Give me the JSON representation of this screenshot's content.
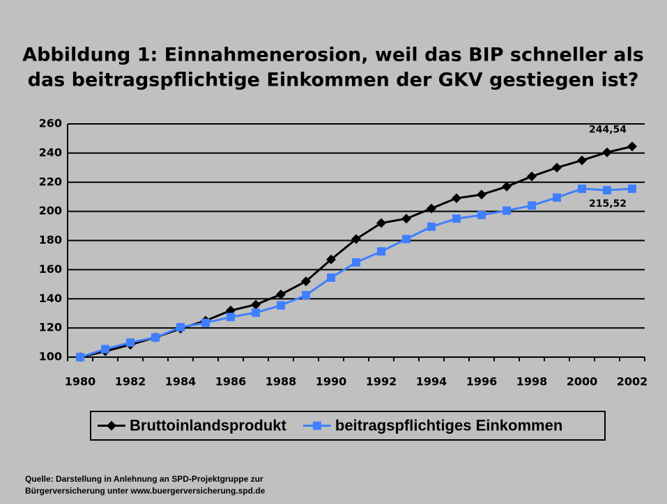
{
  "chart_data": {
    "type": "line",
    "title": [
      "Abbildung 1: Einnahmenerosion, weil das BIP schneller als",
      "das beitragspflichtige Einkommen der GKV gestiegen ist?"
    ],
    "categories": [
      "1980",
      null,
      "1982",
      null,
      "1984",
      null,
      "1986",
      null,
      "1988",
      null,
      "1990",
      null,
      "1992",
      null,
      "1994",
      null,
      "1996",
      null,
      "1998",
      null,
      "2000",
      null,
      "2002"
    ],
    "series": [
      {
        "name": "Bruttoinlandsprodukt",
        "color": "#000000",
        "marker": "diamond",
        "values": [
          100,
          104,
          108.5,
          113.5,
          119.5,
          125,
          132,
          136,
          143,
          152,
          167,
          181,
          192,
          195,
          202,
          209,
          211.5,
          217,
          224,
          230,
          235,
          240.5,
          244.54
        ],
        "value_labels": [
          null,
          null,
          null,
          null,
          null,
          null,
          null,
          null,
          null,
          null,
          null,
          null,
          null,
          null,
          null,
          null,
          null,
          null,
          null,
          null,
          null,
          null,
          "244,54"
        ]
      },
      {
        "name": "beitragspflichtiges Einkommen",
        "color": "#3f7fff",
        "marker": "square",
        "values": [
          100,
          105.5,
          110,
          113.5,
          120.5,
          123.5,
          127.5,
          130.5,
          135.5,
          142.5,
          154.5,
          165,
          172.5,
          181,
          189.5,
          195,
          197.5,
          200.5,
          204,
          209.5,
          215.5,
          214.5,
          215.52
        ],
        "value_labels": [
          null,
          null,
          null,
          null,
          null,
          null,
          null,
          null,
          null,
          null,
          null,
          null,
          null,
          null,
          null,
          null,
          null,
          null,
          null,
          null,
          null,
          null,
          "215,52"
        ]
      }
    ],
    "ylim": [
      100,
      260
    ],
    "yticks": [
      100,
      120,
      140,
      160,
      180,
      200,
      220,
      240,
      260
    ],
    "grid": true,
    "legend": "bottom",
    "source": [
      "Quelle: Darstellung in Anlehnung an SPD-Projektgruppe zur",
      "Bürgerversicherung unter www.buergerversicherung.spd.de"
    ]
  }
}
